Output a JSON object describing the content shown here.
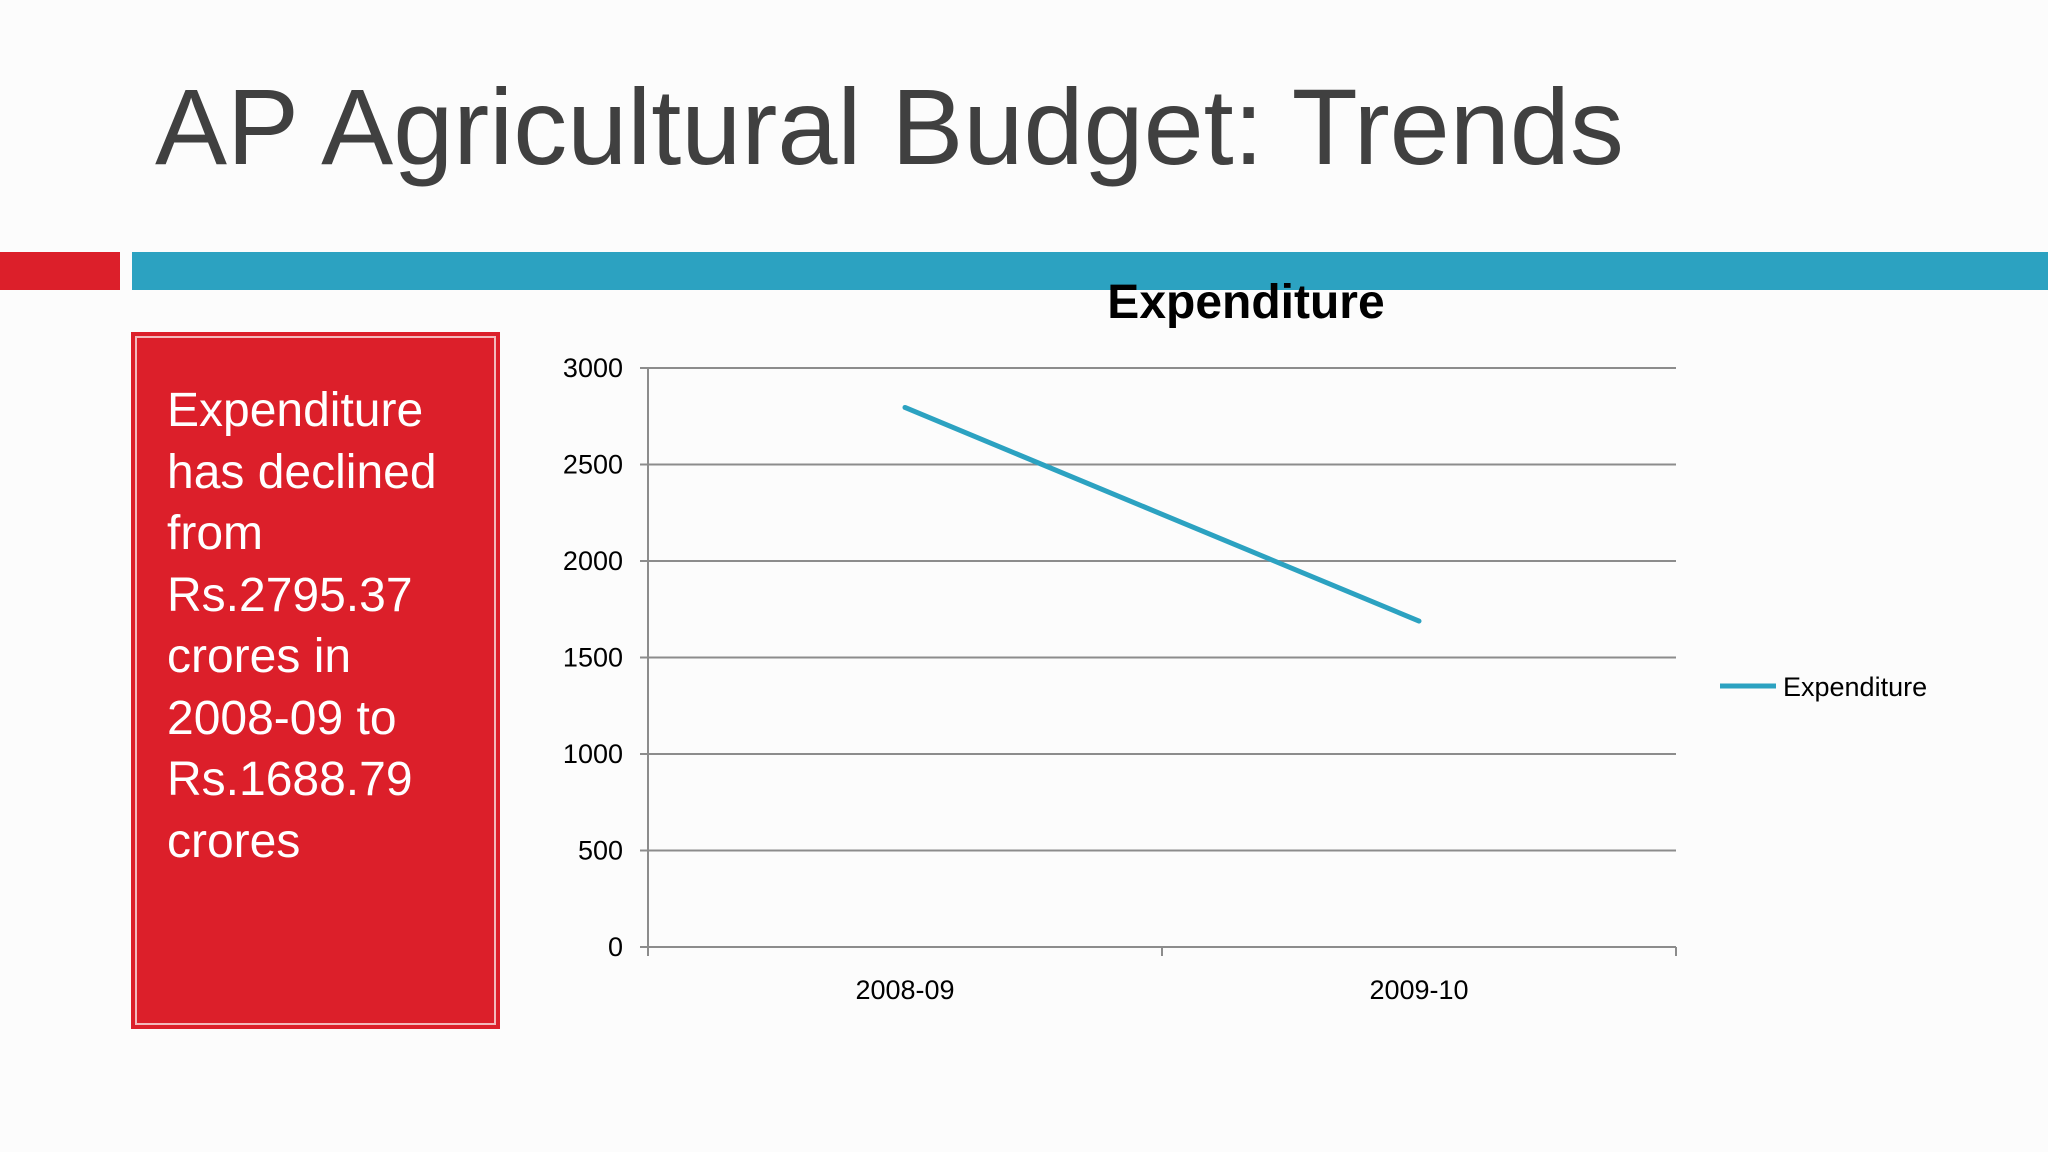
{
  "slide": {
    "title": "AP Agricultural Budget: Trends",
    "callout_text": "Expenditure has declined from Rs.2795.37 crores in 2008-09 to Rs.1688.79 crores"
  },
  "colors": {
    "accent_red": "#dc1f2a",
    "accent_teal": "#2ca2c1",
    "title_gray": "#404040"
  },
  "chart_data": {
    "type": "line",
    "title": "Expenditure",
    "categories": [
      "2008-09",
      "2009-10"
    ],
    "series": [
      {
        "name": "Expenditure",
        "values": [
          2795.37,
          1688.79
        ],
        "color": "#2ca2c1"
      }
    ],
    "ylim": [
      0,
      3000
    ],
    "yticks": [
      0,
      500,
      1000,
      1500,
      2000,
      2500,
      3000
    ],
    "grid": true,
    "legend_position": "right"
  }
}
